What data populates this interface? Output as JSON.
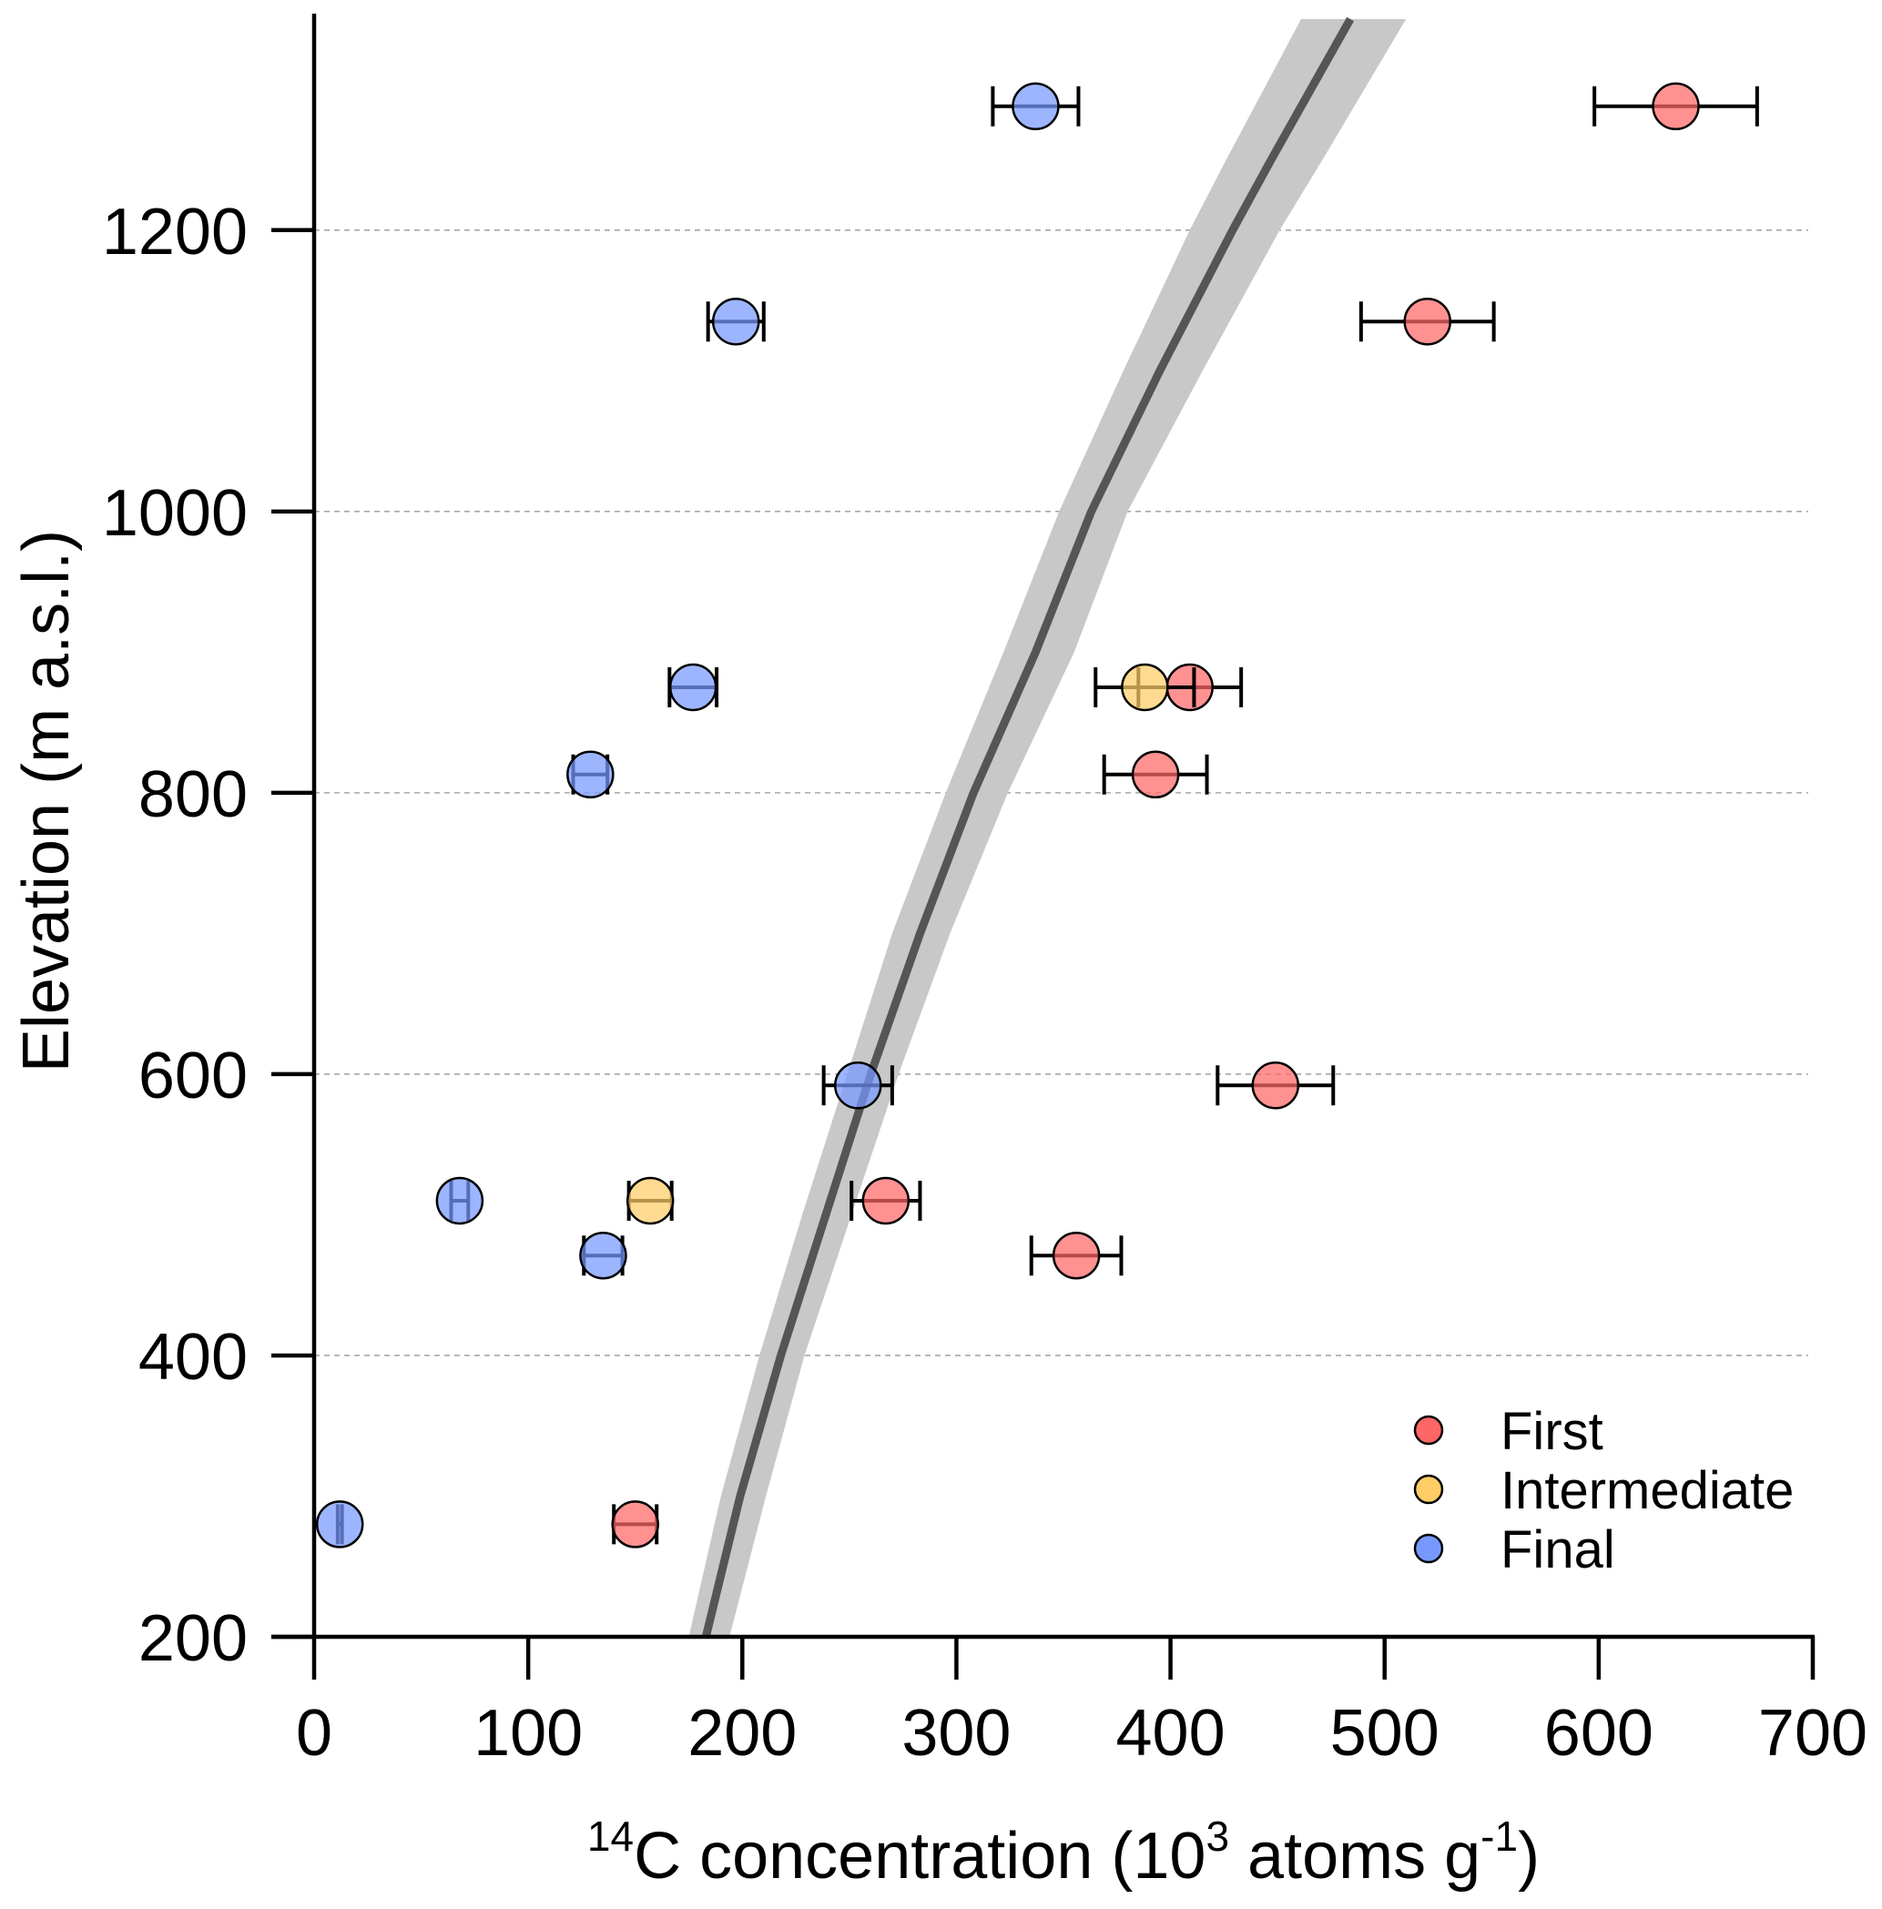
{
  "chart_data": {
    "type": "scatter",
    "title": "",
    "xlabel": {
      "prefix_sup": "14",
      "main": "C concentration (10",
      "sup1": "3",
      "mid": " atoms g",
      "sup2": "-1",
      "suffix": ")"
    },
    "xlabel_plain": "14C concentration (10^3 atoms g^-1)",
    "ylabel": "Elevation (m a.s.l.)",
    "xlim": [
      0,
      700
    ],
    "ylim": [
      200,
      1350
    ],
    "x_ticks": [
      0,
      100,
      200,
      300,
      400,
      500,
      600,
      700
    ],
    "x_tick_labels": [
      "0",
      "100",
      "200",
      "300",
      "400",
      "500",
      "600",
      "700"
    ],
    "y_ticks": [
      200,
      400,
      600,
      800,
      1000,
      1200
    ],
    "y_tick_labels": [
      "200",
      "400",
      "600",
      "800",
      "1000",
      "1200"
    ],
    "grid": {
      "axis": "y",
      "style": "dashed",
      "lines": [
        400,
        600,
        800,
        1000,
        1200
      ]
    },
    "legend": {
      "placement": "bottom-right",
      "entries": [
        {
          "label": "First",
          "color": "#ff6666"
        },
        {
          "label": "Intermediate",
          "color": "#ffcc66"
        },
        {
          "label": "Final",
          "color": "#7799ff"
        }
      ]
    },
    "series": [
      {
        "name": "First",
        "color": "#ff6666",
        "points": [
          {
            "x": 636,
            "xerr": 38,
            "y": 1288
          },
          {
            "x": 520,
            "xerr": 31,
            "y": 1135
          },
          {
            "x": 409,
            "xerr": 24,
            "y": 875
          },
          {
            "x": 393,
            "xerr": 24,
            "y": 813
          },
          {
            "x": 449,
            "xerr": 27,
            "y": 592
          },
          {
            "x": 267,
            "xerr": 16,
            "y": 510
          },
          {
            "x": 356,
            "xerr": 21,
            "y": 471
          },
          {
            "x": 150,
            "xerr": 10,
            "y": 280
          }
        ]
      },
      {
        "name": "Intermediate",
        "color": "#ffcc66",
        "points": [
          {
            "x": 388,
            "xerr": 23,
            "y": 875
          },
          {
            "x": 157,
            "xerr": 10,
            "y": 510
          }
        ]
      },
      {
        "name": "Final",
        "color": "#7799ff",
        "points": [
          {
            "x": 337,
            "xerr": 20,
            "y": 1288
          },
          {
            "x": 197,
            "xerr": 13,
            "y": 1135
          },
          {
            "x": 177,
            "xerr": 11,
            "y": 875
          },
          {
            "x": 129,
            "xerr": 8,
            "y": 813
          },
          {
            "x": 254,
            "xerr": 16,
            "y": 592
          },
          {
            "x": 68,
            "xerr": 4,
            "y": 510
          },
          {
            "x": 135,
            "xerr": 9,
            "y": 471
          },
          {
            "x": 12,
            "xerr": 1,
            "y": 280
          }
        ]
      }
    ],
    "model_curve": {
      "name": "Production curve",
      "line_color": "#555555",
      "band_color": "#c8c8c8",
      "points": [
        {
          "y": 200,
          "x": 183,
          "lo": 175,
          "hi": 194
        },
        {
          "y": 300,
          "x": 199,
          "lo": 190,
          "hi": 211
        },
        {
          "y": 400,
          "x": 218,
          "lo": 208,
          "hi": 229
        },
        {
          "y": 500,
          "x": 239,
          "lo": 228,
          "hi": 251
        },
        {
          "y": 600,
          "x": 260,
          "lo": 249,
          "hi": 273
        },
        {
          "y": 700,
          "x": 283,
          "lo": 270,
          "hi": 297
        },
        {
          "y": 800,
          "x": 308,
          "lo": 295,
          "hi": 324
        },
        {
          "y": 900,
          "x": 337,
          "lo": 322,
          "hi": 355
        },
        {
          "y": 1000,
          "x": 363,
          "lo": 348,
          "hi": 380
        },
        {
          "y": 1100,
          "x": 395,
          "lo": 378,
          "hi": 415
        },
        {
          "y": 1200,
          "x": 429,
          "lo": 409,
          "hi": 451
        },
        {
          "y": 1250,
          "x": 447,
          "lo": 426,
          "hi": 471
        },
        {
          "y": 1350,
          "x": 484,
          "lo": 461,
          "hi": 510
        }
      ]
    }
  }
}
